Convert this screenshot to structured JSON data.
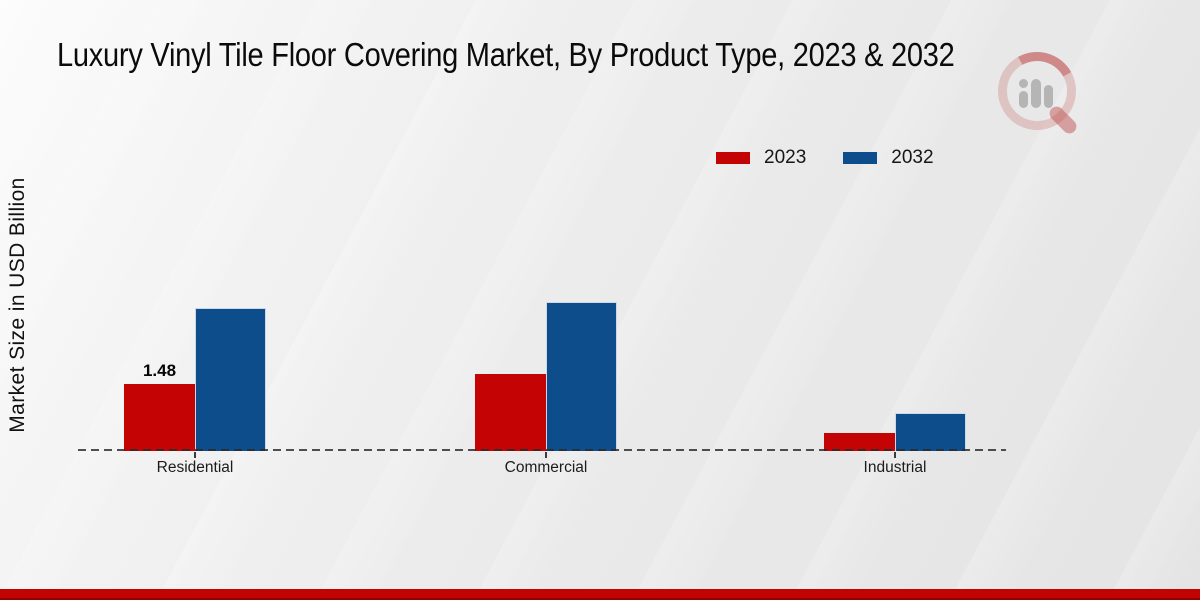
{
  "title": "Luxury Vinyl Tile Floor Covering Market, By Product Type, 2023 & 2032",
  "y_axis_label": "Market Size in USD Billion",
  "watermark_icon": "magnifier-bar-chart-logo",
  "colors": {
    "series_2023": "#c40404",
    "series_2032": "#0d4d8c",
    "bottom_strip": "#c10303",
    "baseline": "#2a2a2a",
    "title_text": "#0b0b0b"
  },
  "legend": {
    "position": "top-right",
    "items": [
      {
        "label": "2023",
        "color": "#c40404"
      },
      {
        "label": "2032",
        "color": "#0d4d8c"
      }
    ]
  },
  "chart_data": {
    "type": "bar",
    "title": "Luxury Vinyl Tile Floor Covering Market, By Product Type, 2023 & 2032",
    "ylabel": "Market Size in USD Billion",
    "xlabel": "",
    "categories": [
      "Residential",
      "Commercial",
      "Industrial"
    ],
    "series": [
      {
        "name": "2023",
        "color": "#c40404",
        "values": [
          1.48,
          1.69,
          0.4
        ],
        "value_labels": [
          "1.48",
          "",
          ""
        ]
      },
      {
        "name": "2032",
        "color": "#0d4d8c",
        "values": [
          3.15,
          3.28,
          0.84
        ],
        "value_labels": [
          "",
          "",
          ""
        ]
      }
    ],
    "ylim": [
      0,
      4.0
    ],
    "grid": false,
    "legend_position": "top-right",
    "x_axis_style": "dashed-line",
    "labeled_point": {
      "series": "2023",
      "category": "Residential",
      "value": 1.48
    }
  }
}
